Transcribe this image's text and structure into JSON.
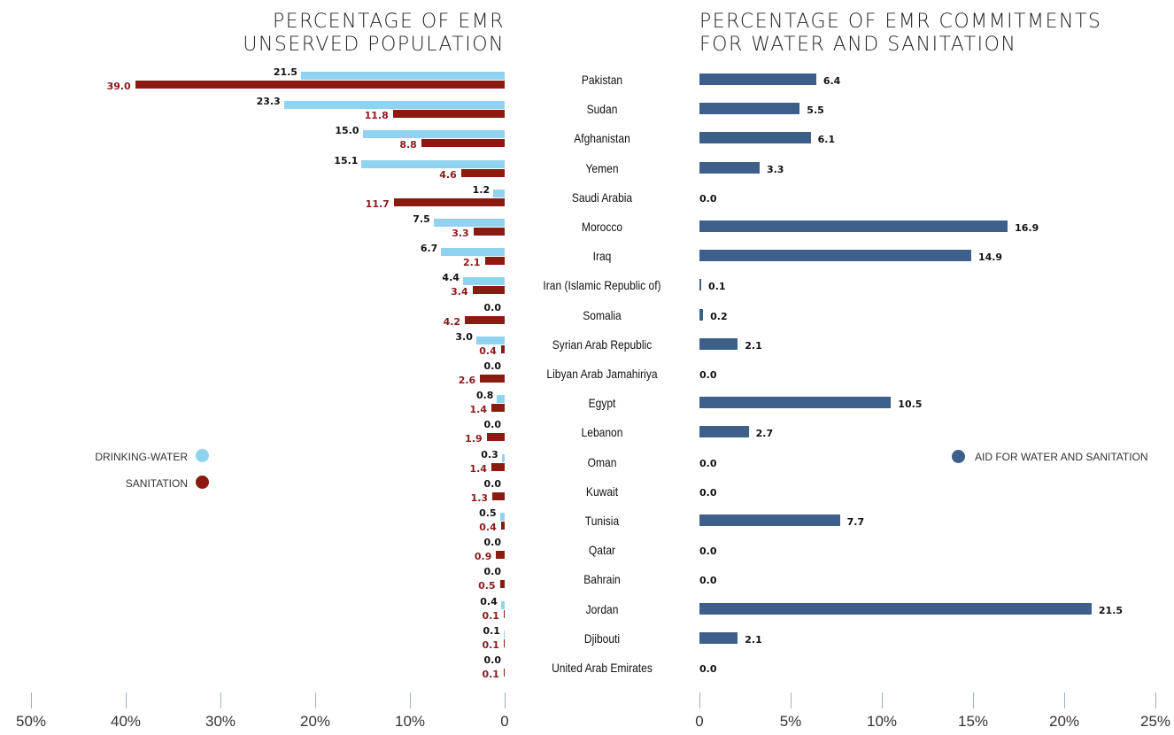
{
  "titles": {
    "left_line1": "PERCENTAGE OF EMR",
    "left_line2": "UNSERVED POPULATION",
    "right_line1": "PERCENTAGE OF EMR COMMITMENTS",
    "right_line2": "FOR WATER AND SANITATION"
  },
  "legend": {
    "water": "DRINKING-WATER",
    "sanitation": "SANITATION",
    "aid": "AID FOR WATER AND SANITATION"
  },
  "colors": {
    "water": "#8fd3f0",
    "sanitation": "#8b1a10",
    "aid": "#3d5f8a"
  },
  "chart_data": [
    {
      "type": "bar",
      "orientation": "horizontal",
      "direction": "leftward",
      "title": "PERCENTAGE OF EMR UNSERVED POPULATION",
      "categories": [
        "Pakistan",
        "Sudan",
        "Afghanistan",
        "Yemen",
        "Saudi Arabia",
        "Morocco",
        "Iraq",
        "Iran (Islamic Republic of)",
        "Somalia",
        "Syrian Arab Republic",
        "Libyan Arab Jamahiriya",
        "Egypt",
        "Lebanon",
        "Oman",
        "Kuwait",
        "Tunisia",
        "Qatar",
        "Bahrain",
        "Jordan",
        "Djibouti",
        "United Arab Emirates"
      ],
      "series": [
        {
          "name": "DRINKING-WATER",
          "values": [
            21.5,
            23.3,
            15.0,
            15.1,
            1.2,
            7.5,
            6.7,
            4.4,
            0.0,
            3.0,
            0.0,
            0.8,
            0.0,
            0.3,
            0.0,
            0.5,
            0.0,
            0.0,
            0.4,
            0.1,
            0.0
          ]
        },
        {
          "name": "SANITATION",
          "values": [
            39.0,
            11.8,
            8.8,
            4.6,
            11.7,
            3.3,
            2.1,
            3.4,
            4.2,
            0.4,
            2.6,
            1.4,
            1.9,
            1.4,
            1.3,
            0.4,
            0.9,
            0.5,
            0.1,
            0.1,
            0.1
          ]
        }
      ],
      "x_ticks": [
        "50%",
        "40%",
        "30%",
        "20%",
        "10%",
        "0"
      ],
      "xlim": [
        0,
        50
      ],
      "legend_position": "left-middle"
    },
    {
      "type": "bar",
      "orientation": "horizontal",
      "title": "PERCENTAGE OF EMR COMMITMENTS FOR WATER AND SANITATION",
      "categories": [
        "Pakistan",
        "Sudan",
        "Afghanistan",
        "Yemen",
        "Saudi Arabia",
        "Morocco",
        "Iraq",
        "Iran (Islamic Republic of)",
        "Somalia",
        "Syrian Arab Republic",
        "Libyan Arab Jamahiriya",
        "Egypt",
        "Lebanon",
        "Oman",
        "Kuwait",
        "Tunisia",
        "Qatar",
        "Bahrain",
        "Jordan",
        "Djibouti",
        "United Arab Emirates"
      ],
      "series": [
        {
          "name": "AID FOR WATER AND SANITATION",
          "values": [
            6.4,
            5.5,
            6.1,
            3.3,
            0.0,
            16.9,
            14.9,
            0.1,
            0.2,
            2.1,
            0.0,
            10.5,
            2.7,
            0.0,
            0.0,
            7.7,
            0.0,
            0.0,
            21.5,
            2.1,
            0.0
          ]
        }
      ],
      "x_ticks": [
        "0",
        "5%",
        "10%",
        "15%",
        "20%",
        "25%"
      ],
      "xlim": [
        0,
        25
      ],
      "legend_position": "right-middle"
    }
  ]
}
